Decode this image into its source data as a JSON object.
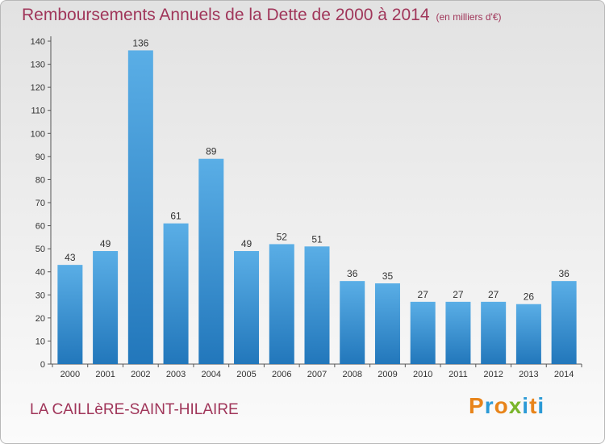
{
  "header": {
    "title": "Remboursements Annuels de la Dette de 2000 à 2014",
    "subtitle": "(en milliers d'€)"
  },
  "footer": {
    "commune": "LA CAILLèRE-SAINT-HILAIRE",
    "brand": "Proxiti"
  },
  "colors": {
    "title": "#a0365a",
    "bar_top": "#5aaee6",
    "bar_bottom": "#2277bb",
    "brand_letters": [
      "#e8841a",
      "#2b9ad6",
      "#e8841a",
      "#7ab52b",
      "#2b9ad6",
      "#e8841a",
      "#2b9ad6"
    ]
  },
  "chart_data": {
    "type": "bar",
    "categories": [
      "2000",
      "2001",
      "2002",
      "2003",
      "2004",
      "2005",
      "2006",
      "2007",
      "2008",
      "2009",
      "2010",
      "2011",
      "2012",
      "2013",
      "2014"
    ],
    "values": [
      43,
      49,
      136,
      61,
      89,
      49,
      52,
      51,
      36,
      35,
      27,
      27,
      27,
      26,
      36
    ],
    "ylim": [
      0,
      140
    ],
    "yticks": [
      0,
      10,
      20,
      30,
      40,
      50,
      60,
      70,
      80,
      90,
      100,
      110,
      120,
      130,
      140
    ],
    "grid": false,
    "data_labels": true
  }
}
